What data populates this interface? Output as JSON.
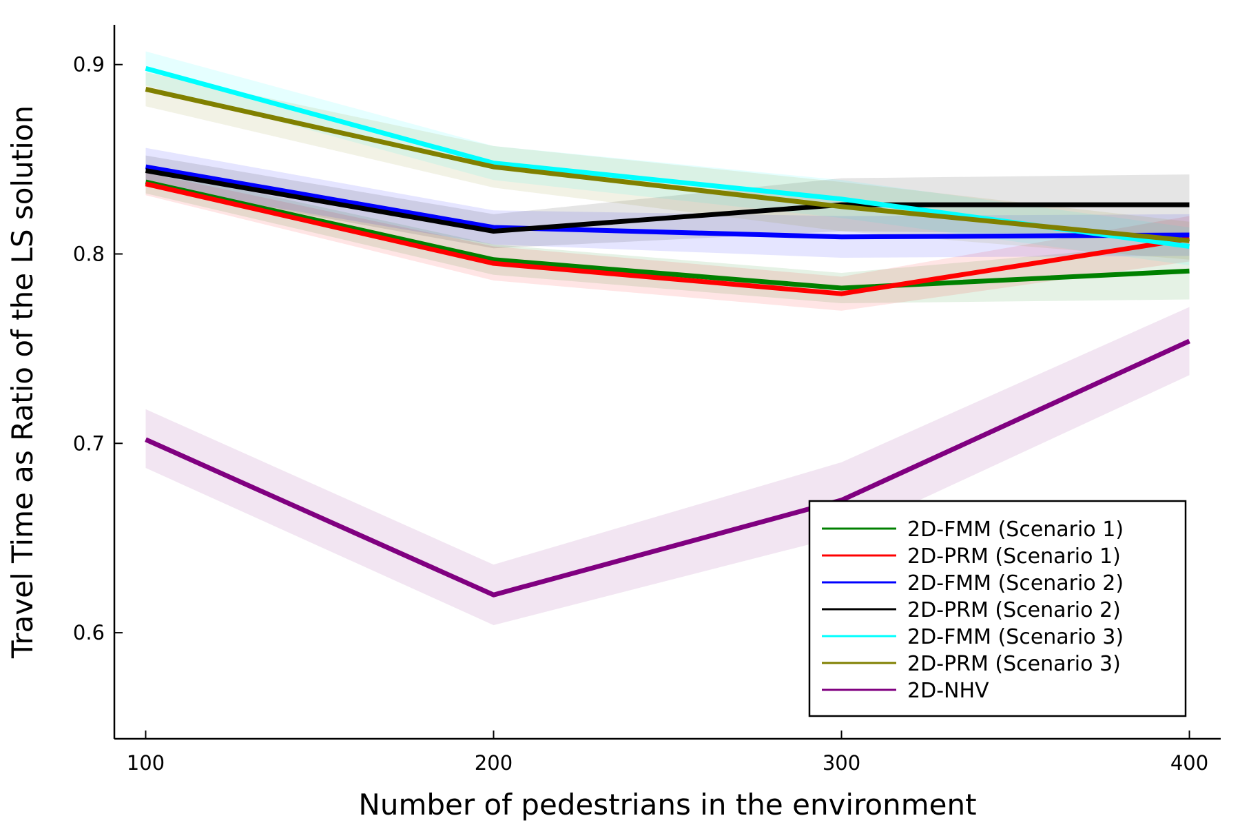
{
  "chart_data": {
    "type": "line",
    "xlabel": "Number of pedestrians in the environment",
    "ylabel": "Travel Time as Ratio of the LS solution",
    "x": [
      100,
      200,
      300,
      400
    ],
    "xlim": [
      91,
      409
    ],
    "ylim": [
      0.544,
      0.921
    ],
    "xticks": [
      100,
      200,
      300,
      400
    ],
    "yticks": [
      0.6,
      0.7,
      0.8,
      0.9
    ],
    "xtick_labels": [
      "100",
      "200",
      "300",
      "400"
    ],
    "ytick_labels": [
      "0.6",
      "0.7",
      "0.8",
      "0.9"
    ],
    "grid": false,
    "legend_position": "bottom-right",
    "series": [
      {
        "name": "2D-FMM (Scenario 1)",
        "color": "#008000",
        "values": [
          0.838,
          0.797,
          0.782,
          0.791
        ],
        "lower": [
          0.832,
          0.789,
          0.774,
          0.776
        ],
        "upper": [
          0.845,
          0.805,
          0.79,
          0.806
        ]
      },
      {
        "name": "2D-PRM (Scenario 1)",
        "color": "#ff0000",
        "values": [
          0.837,
          0.795,
          0.779,
          0.808
        ],
        "lower": [
          0.831,
          0.786,
          0.77,
          0.796
        ],
        "upper": [
          0.843,
          0.804,
          0.788,
          0.82
        ]
      },
      {
        "name": "2D-FMM (Scenario 2)",
        "color": "#0000ff",
        "values": [
          0.846,
          0.814,
          0.809,
          0.81
        ],
        "lower": [
          0.836,
          0.805,
          0.798,
          0.799
        ],
        "upper": [
          0.856,
          0.823,
          0.82,
          0.821
        ]
      },
      {
        "name": "2D-PRM (Scenario 2)",
        "color": "#000000",
        "values": [
          0.844,
          0.812,
          0.826,
          0.826
        ],
        "lower": [
          0.836,
          0.803,
          0.812,
          0.81
        ],
        "upper": [
          0.852,
          0.821,
          0.84,
          0.842
        ]
      },
      {
        "name": "2D-FMM (Scenario 3)",
        "color": "#00ffff",
        "values": [
          0.898,
          0.848,
          0.829,
          0.804
        ],
        "lower": [
          0.889,
          0.839,
          0.819,
          0.794
        ],
        "upper": [
          0.907,
          0.857,
          0.839,
          0.814
        ]
      },
      {
        "name": "2D-PRM (Scenario 3)",
        "color": "#808000",
        "values": [
          0.887,
          0.846,
          0.825,
          0.807
        ],
        "lower": [
          0.878,
          0.835,
          0.812,
          0.797
        ],
        "upper": [
          0.896,
          0.857,
          0.838,
          0.817
        ]
      },
      {
        "name": "2D-NHV",
        "color": "#800080",
        "values": [
          0.702,
          0.62,
          0.67,
          0.754
        ],
        "lower": [
          0.687,
          0.604,
          0.651,
          0.736
        ],
        "upper": [
          0.718,
          0.636,
          0.69,
          0.772
        ]
      }
    ]
  }
}
